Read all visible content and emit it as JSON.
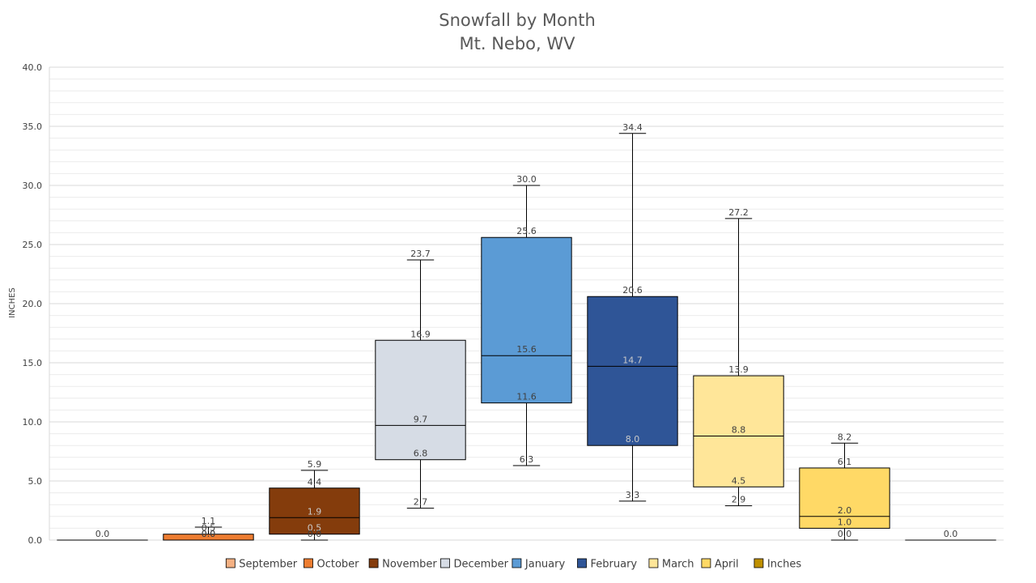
{
  "chart_data": {
    "type": "box",
    "title": [
      "Snowfall by Month",
      "Mt. Nebo, WV"
    ],
    "ylabel": "INCHES",
    "xlabel": "",
    "ylim": [
      0,
      40
    ],
    "y_ticks": [
      "0.0",
      "5.0",
      "10.0",
      "15.0",
      "20.0",
      "25.0",
      "30.0",
      "35.0",
      "40.0"
    ],
    "y_tick_values": [
      0,
      5,
      10,
      15,
      20,
      25,
      30,
      35,
      40
    ],
    "grid": true,
    "minor_grid": true,
    "legend_position": "bottom",
    "series": [
      {
        "name": "September",
        "color": "#F4B183",
        "min": 0.0,
        "q1": 0.0,
        "median": 0.0,
        "q3": 0.0,
        "max": 0.0,
        "labels": [
          "0.0"
        ]
      },
      {
        "name": "October",
        "color": "#ED7D31",
        "min": 0.0,
        "q1": 0.0,
        "median": 0.0,
        "q3": 0.5,
        "max": 1.1,
        "labels": [
          "1.1",
          "0.5",
          "0.0",
          "0.0"
        ]
      },
      {
        "name": "November",
        "color": "#843C0C",
        "min": 0.0,
        "q1": 0.5,
        "median": 1.9,
        "q3": 4.4,
        "max": 5.9,
        "labels": [
          "5.9",
          "4.4",
          "1.9",
          "0.5",
          "0.0"
        ]
      },
      {
        "name": "December",
        "color": "#D6DCE5",
        "min": 2.7,
        "q1": 6.8,
        "median": 9.7,
        "q3": 16.9,
        "max": 23.7,
        "labels": [
          "23.7",
          "16.9",
          "9.7",
          "6.8",
          "2.7"
        ]
      },
      {
        "name": "January",
        "color": "#5B9BD5",
        "min": 6.3,
        "q1": 11.6,
        "median": 15.6,
        "q3": 25.6,
        "max": 30.0,
        "labels": [
          "30.0",
          "25.6",
          "15.6",
          "11.6",
          "6.3"
        ]
      },
      {
        "name": "February",
        "color": "#2F5597",
        "min": 3.3,
        "q1": 8.0,
        "median": 14.7,
        "q3": 20.6,
        "max": 34.4,
        "labels": [
          "34.4",
          "20.6",
          "14.7",
          "8.0",
          "3.3"
        ]
      },
      {
        "name": "March",
        "color": "#FFE699",
        "min": 2.9,
        "q1": 4.5,
        "median": 8.8,
        "q3": 13.9,
        "max": 27.2,
        "labels": [
          "27.2",
          "13.9",
          "8.8",
          "4.5",
          "2.9"
        ]
      },
      {
        "name": "April",
        "color": "#FFD966",
        "min": 0.0,
        "q1": 1.0,
        "median": 2.0,
        "q3": 6.1,
        "max": 8.2,
        "labels": [
          "8.2",
          "6.1",
          "2.0",
          "1.0",
          "0.0"
        ]
      },
      {
        "name": "Inches",
        "color": "#BF9000",
        "min": 0.0,
        "q1": 0.0,
        "median": 0.0,
        "q3": 0.0,
        "max": 0.0,
        "labels": [
          "0.0"
        ]
      }
    ]
  }
}
